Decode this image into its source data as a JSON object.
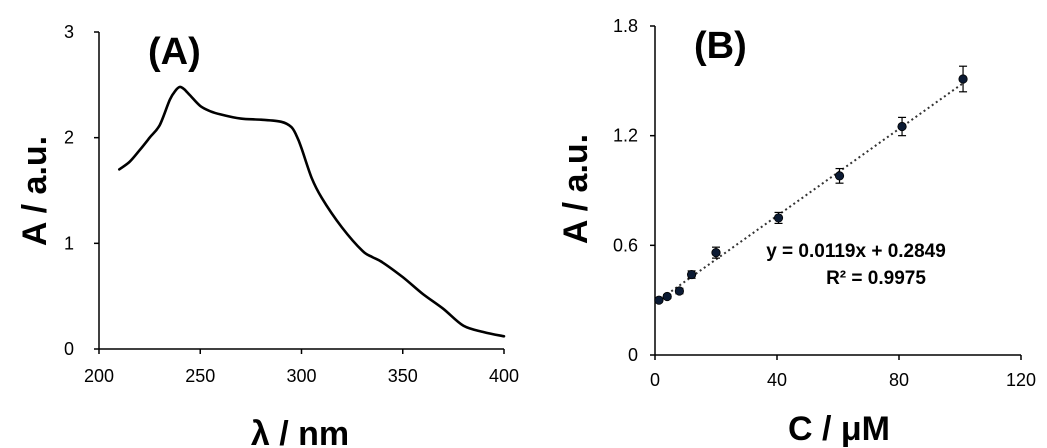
{
  "chart_data": [
    {
      "type": "line",
      "panel_label": "(A)",
      "xlabel": "λ / nm",
      "ylabel": "A / a.u.",
      "xlim": [
        200,
        400
      ],
      "ylim": [
        0,
        3
      ],
      "xticks": [
        200,
        250,
        300,
        350,
        400
      ],
      "yticks": [
        0,
        1,
        2,
        3
      ],
      "grid": false,
      "series": [
        {
          "color": "#000000",
          "x": [
            210,
            215,
            220,
            225,
            230,
            235,
            238,
            240,
            242,
            245,
            250,
            255,
            260,
            270,
            280,
            290,
            295,
            298,
            300,
            305,
            310,
            320,
            330,
            335,
            340,
            350,
            360,
            370,
            380,
            390,
            400
          ],
          "y": [
            1.7,
            1.77,
            1.88,
            2.0,
            2.12,
            2.36,
            2.45,
            2.48,
            2.46,
            2.4,
            2.3,
            2.25,
            2.22,
            2.18,
            2.17,
            2.15,
            2.1,
            2.0,
            1.9,
            1.62,
            1.43,
            1.15,
            0.93,
            0.87,
            0.82,
            0.68,
            0.52,
            0.38,
            0.22,
            0.16,
            0.12
          ]
        }
      ]
    },
    {
      "type": "scatter",
      "panel_label": "(B)",
      "xlabel": "C / μM",
      "ylabel": "A / a.u.",
      "xlim": [
        0,
        120
      ],
      "ylim": [
        0,
        1.8
      ],
      "xticks": [
        "0",
        "40",
        "80",
        "120"
      ],
      "yticks": [
        "0",
        "0.6",
        "1.2",
        "1.8"
      ],
      "grid": false,
      "series": [
        {
          "color": "#0b1a33",
          "x": [
            1.3,
            4,
            8,
            12,
            20,
            40.5,
            60.5,
            81,
            101
          ],
          "y": [
            0.3,
            0.32,
            0.35,
            0.44,
            0.56,
            0.75,
            0.98,
            1.25,
            1.51
          ],
          "error": [
            0.01,
            0.01,
            0.015,
            0.02,
            0.03,
            0.03,
            0.04,
            0.05,
            0.07
          ]
        }
      ],
      "trendline": {
        "style": "dotted",
        "slope": 0.0119,
        "intercept": 0.2849,
        "x_range": [
          0,
          101
        ],
        "equation": "y = 0.0119x + 0.2849",
        "r_squared": "R² = 0.9975"
      }
    }
  ]
}
